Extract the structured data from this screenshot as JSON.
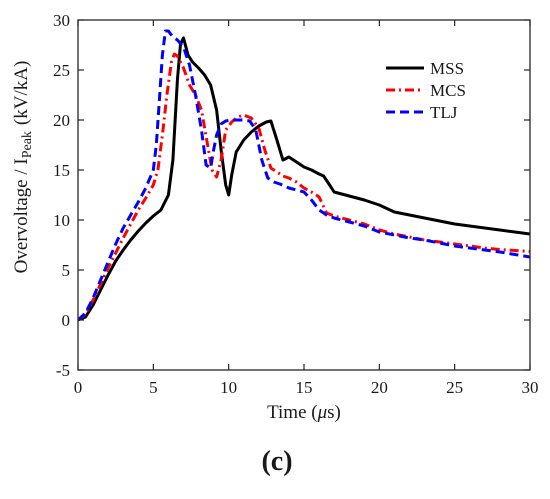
{
  "panel_label": "(c)",
  "colors": {
    "MSS": "#000000",
    "MCS": "#ff0000",
    "TLJ": "#0000ff",
    "axis": "#262626",
    "background": "#ffffff"
  },
  "chart_data": {
    "type": "line",
    "title": "",
    "xlabel": "Time (μs)",
    "ylabel": "Overvoltage / I_Peak (kV/kA)",
    "xlim": [
      0,
      30
    ],
    "ylim": [
      -5,
      30
    ],
    "xticks": [
      0,
      5,
      10,
      15,
      20,
      25,
      30
    ],
    "yticks": [
      -5,
      0,
      5,
      10,
      15,
      20,
      25,
      30
    ],
    "grid": false,
    "legend_placement": "top-right",
    "series": [
      {
        "name": "MSS",
        "line_style": "solid",
        "x": [
          0,
          0.5,
          1,
          1.5,
          2,
          2.5,
          3,
          3.5,
          4,
          4.5,
          5,
          5.5,
          6,
          6.3,
          6.6,
          6.8,
          7.0,
          7.3,
          7.6,
          8.0,
          8.4,
          8.8,
          9.2,
          9.5,
          9.8,
          10.0,
          10.2,
          10.5,
          11.0,
          11.5,
          12.0,
          12.5,
          12.8,
          13.2,
          13.6,
          14.0,
          14.5,
          15.0,
          15.5,
          16.0,
          16.3,
          16.7,
          17.0,
          18.0,
          19.0,
          20.0,
          21.0,
          22.0,
          23.0,
          24.0,
          25.0,
          26.0,
          27.0,
          28.0,
          29.0,
          30.0
        ],
        "y": [
          0,
          0.3,
          1.5,
          3.0,
          4.5,
          5.9,
          7.0,
          8.0,
          8.9,
          9.7,
          10.4,
          11.0,
          12.5,
          16.0,
          24.0,
          27.6,
          28.2,
          26.5,
          25.8,
          25.2,
          24.5,
          23.5,
          21.0,
          17.0,
          13.5,
          12.5,
          14.5,
          16.8,
          18.0,
          18.8,
          19.4,
          19.8,
          19.9,
          18.0,
          16.0,
          16.3,
          15.8,
          15.3,
          15.0,
          14.6,
          14.4,
          13.5,
          12.8,
          12.4,
          12.0,
          11.5,
          10.8,
          10.5,
          10.2,
          9.9,
          9.6,
          9.4,
          9.2,
          9.0,
          8.8,
          8.6
        ]
      },
      {
        "name": "MCS",
        "line_style": "dash-dot",
        "x": [
          0,
          0.5,
          1,
          1.5,
          2,
          2.5,
          3,
          3.5,
          4,
          4.5,
          5,
          5.3,
          5.6,
          5.9,
          6.2,
          6.4,
          6.6,
          7.0,
          7.4,
          7.8,
          8.2,
          8.6,
          8.9,
          9.2,
          9.5,
          9.8,
          10.2,
          10.6,
          11.0,
          11.5,
          12.0,
          12.4,
          12.8,
          13.2,
          13.6,
          14.0,
          14.5,
          15.0,
          15.5,
          16.0,
          16.5,
          17.0,
          18.0,
          19.0,
          20.0,
          21.0,
          22.0,
          23.0,
          24.0,
          25.0,
          26.0,
          27.0,
          28.0,
          29.0,
          30.0
        ],
        "y": [
          0,
          0.6,
          2.0,
          3.6,
          5.2,
          6.7,
          8.2,
          9.6,
          11.0,
          12.2,
          13.5,
          15.0,
          18.5,
          22.5,
          25.8,
          26.6,
          26.4,
          25.2,
          23.5,
          22.5,
          21.0,
          17.5,
          15.0,
          14.3,
          16.0,
          19.0,
          19.8,
          20.3,
          20.5,
          20.2,
          19.2,
          17.0,
          15.2,
          14.8,
          14.4,
          14.2,
          13.8,
          13.2,
          12.8,
          12.3,
          10.7,
          10.4,
          10.0,
          9.6,
          9.0,
          8.6,
          8.3,
          8.0,
          7.8,
          7.6,
          7.4,
          7.2,
          7.05,
          6.95,
          6.85
        ]
      },
      {
        "name": "TLJ",
        "line_style": "dashed",
        "x": [
          0,
          0.5,
          1,
          1.5,
          2,
          2.5,
          3,
          3.5,
          4,
          4.5,
          5,
          5.2,
          5.4,
          5.6,
          5.8,
          6.0,
          6.3,
          6.6,
          7.0,
          7.4,
          7.8,
          8.2,
          8.5,
          8.8,
          9.0,
          9.2,
          9.5,
          9.8,
          10.2,
          10.6,
          11.0,
          11.4,
          11.8,
          12.2,
          12.6,
          13.0,
          13.4,
          14.0,
          14.5,
          15.0,
          15.5,
          16.0,
          16.5,
          17.0,
          18.0,
          19.0,
          20.0,
          21.0,
          22.0,
          23.0,
          24.0,
          25.0,
          26.0,
          27.0,
          28.0,
          29.0,
          30.0
        ],
        "y": [
          0,
          0.7,
          2.2,
          4.0,
          5.8,
          7.6,
          9.2,
          10.5,
          11.8,
          13.2,
          15.0,
          17.5,
          22.0,
          26.5,
          28.9,
          28.9,
          28.3,
          28.0,
          27.3,
          25.5,
          22.5,
          19.0,
          15.5,
          15.2,
          17.0,
          18.5,
          19.6,
          19.9,
          20.0,
          20.0,
          20.0,
          19.9,
          19.0,
          16.0,
          14.2,
          13.8,
          13.6,
          13.2,
          13.0,
          12.8,
          12.0,
          11.0,
          10.5,
          10.2,
          9.8,
          9.4,
          8.8,
          8.5,
          8.2,
          8.0,
          7.7,
          7.4,
          7.2,
          7.0,
          6.8,
          6.55,
          6.3
        ]
      }
    ]
  }
}
